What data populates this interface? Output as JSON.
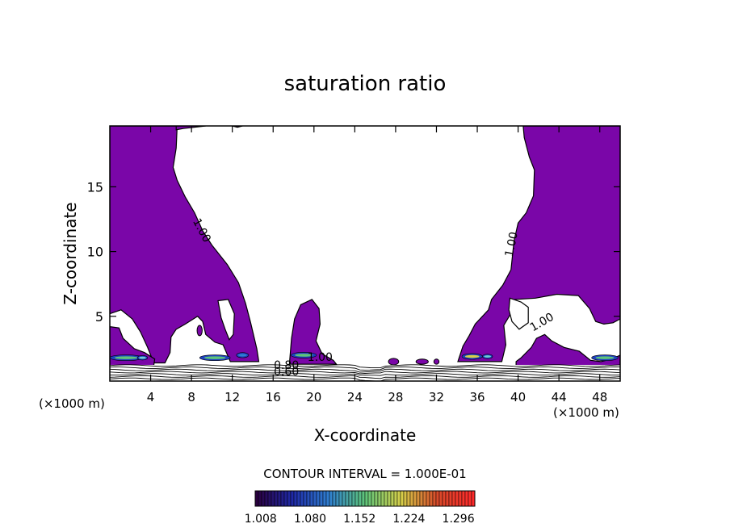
{
  "chart_data": {
    "type": "contour",
    "title": "saturation ratio",
    "xlabel": "X-coordinate",
    "ylabel": "Z-coordinate",
    "x_unit_label": "(×1000 m)",
    "z_unit_label": "(×1000 m)",
    "xlim": [
      0,
      50
    ],
    "ylim": [
      0,
      19.7
    ],
    "x_ticks": [
      "4",
      "8",
      "12",
      "16",
      "20",
      "24",
      "28",
      "32",
      "36",
      "40",
      "44",
      "48"
    ],
    "y_ticks": [
      "5",
      "10",
      "15"
    ],
    "contour_interval_label": "CONTOUR INTERVAL = 1.000E-01",
    "contour_labels": [
      "1.00",
      "1.00",
      "1.00",
      "1.00",
      "0.80",
      "0.60"
    ],
    "colorbar": {
      "ticks": [
        "1.008",
        "1.080",
        "1.152",
        "1.224",
        "1.296"
      ],
      "tick_values": [
        1.008,
        1.08,
        1.152,
        1.224,
        1.296
      ],
      "range": [
        1.0,
        1.32
      ],
      "colors": [
        "#2a0040",
        "#1f2aa8",
        "#2f7fd0",
        "#5ec47a",
        "#d6d04a",
        "#d84a2a",
        "#ff2a2a"
      ]
    },
    "fill_color": "#7a06a8",
    "grid": false,
    "regions": [
      {
        "name": "left-upper",
        "points": [
          [
            0,
            19.7
          ],
          [
            6.6,
            19.7
          ],
          [
            6.5,
            18
          ],
          [
            6.2,
            16.5
          ],
          [
            6.6,
            15.5
          ],
          [
            7.4,
            14.2
          ],
          [
            8.3,
            13
          ],
          [
            9.1,
            11.6
          ],
          [
            10,
            10.5
          ],
          [
            11.5,
            9
          ],
          [
            12.6,
            7.6
          ],
          [
            13.3,
            6
          ],
          [
            13.8,
            4.5
          ],
          [
            14.4,
            2.5
          ],
          [
            14.6,
            1.5
          ],
          [
            11.8,
            1.5
          ],
          [
            11.1,
            2.8
          ],
          [
            10.3,
            3
          ],
          [
            9.4,
            3.6
          ],
          [
            9.1,
            4.6
          ],
          [
            8.6,
            5
          ],
          [
            7.4,
            4.4
          ],
          [
            6.5,
            4
          ],
          [
            6,
            3.4
          ],
          [
            5.9,
            2.2
          ],
          [
            5.4,
            1.4
          ],
          [
            4.3,
            1.4
          ],
          [
            3.7,
            2.6
          ],
          [
            3,
            3.8
          ],
          [
            2.2,
            4.8
          ],
          [
            1.1,
            5.5
          ],
          [
            0,
            5.2
          ]
        ]
      },
      {
        "name": "left-lower",
        "points": [
          [
            0,
            4.2
          ],
          [
            0.9,
            4.1
          ],
          [
            1.3,
            3.3
          ],
          [
            2.4,
            2.5
          ],
          [
            3.4,
            2.2
          ],
          [
            4.4,
            1.7
          ],
          [
            4.3,
            1.2
          ],
          [
            0,
            1.2
          ]
        ]
      },
      {
        "name": "mid-bump",
        "points": [
          [
            17.6,
            1.4
          ],
          [
            17.8,
            3.3
          ],
          [
            18.1,
            4.8
          ],
          [
            18.7,
            5.9
          ],
          [
            19.8,
            6.3
          ],
          [
            20.5,
            5.6
          ],
          [
            20.6,
            4.4
          ],
          [
            20.2,
            3.1
          ],
          [
            20.8,
            2.1
          ],
          [
            21.9,
            1.6
          ],
          [
            22.2,
            1.3
          ],
          [
            17.6,
            1.3
          ]
        ]
      },
      {
        "name": "right-upper",
        "points": [
          [
            40.5,
            19.7
          ],
          [
            50,
            19.7
          ],
          [
            50,
            4.8
          ],
          [
            49.3,
            4.5
          ],
          [
            48.4,
            4.4
          ],
          [
            47.6,
            4.6
          ],
          [
            47,
            5.6
          ],
          [
            45.9,
            6.6
          ],
          [
            43.8,
            6.7
          ],
          [
            41.7,
            6.4
          ],
          [
            39.7,
            6.3
          ],
          [
            39.5,
            5.5
          ],
          [
            38.6,
            4.3
          ],
          [
            38.8,
            2.8
          ],
          [
            38.4,
            1.5
          ],
          [
            34.1,
            1.5
          ],
          [
            34.6,
            2.7
          ],
          [
            35.2,
            3.5
          ],
          [
            35.8,
            4.4
          ],
          [
            37.1,
            5.5
          ],
          [
            37.4,
            6.3
          ],
          [
            38.5,
            7.4
          ],
          [
            39.3,
            8.6
          ],
          [
            39.6,
            10.8
          ],
          [
            40,
            12.2
          ],
          [
            40.8,
            13
          ],
          [
            41.5,
            14.3
          ],
          [
            41.6,
            16.3
          ],
          [
            41.1,
            17.3
          ],
          [
            40.6,
            18.8
          ]
        ]
      },
      {
        "name": "right-lower",
        "points": [
          [
            39.8,
            1.5
          ],
          [
            40.3,
            1.8
          ],
          [
            41.3,
            2.6
          ],
          [
            41.8,
            3.3
          ],
          [
            42.6,
            3.6
          ],
          [
            43.3,
            3.1
          ],
          [
            44.5,
            2.6
          ],
          [
            46,
            2.3
          ],
          [
            47.1,
            1.6
          ],
          [
            48.1,
            1.5
          ],
          [
            49.2,
            1.7
          ],
          [
            50,
            2
          ],
          [
            50,
            1.2
          ],
          [
            39.8,
            1.2
          ]
        ]
      },
      {
        "name": "top-left-sliver",
        "points": [
          [
            6.5,
            19.7
          ],
          [
            9.4,
            19.7
          ],
          [
            7.2,
            19.5
          ],
          [
            6.5,
            19.4
          ]
        ]
      },
      {
        "name": "top-mid-sliver",
        "points": [
          [
            12,
            19.7
          ],
          [
            13,
            19.7
          ],
          [
            12.5,
            19.6
          ]
        ]
      }
    ],
    "islands": [
      {
        "name": "white-island-left",
        "points": [
          [
            10.6,
            6.2
          ],
          [
            11.6,
            6.3
          ],
          [
            12.2,
            5.2
          ],
          [
            12.1,
            3.6
          ],
          [
            11.7,
            3.2
          ],
          [
            11.3,
            4
          ],
          [
            10.9,
            4.9
          ]
        ]
      },
      {
        "name": "white-island-right",
        "points": [
          [
            39.2,
            6.4
          ],
          [
            40.3,
            6.1
          ],
          [
            41,
            5.7
          ],
          [
            41,
            4.5
          ],
          [
            40.1,
            4
          ],
          [
            39.4,
            4.6
          ],
          [
            39.1,
            5.5
          ]
        ]
      }
    ],
    "hotspots": [
      {
        "x": 1.6,
        "z": 1.8,
        "w": 3.2,
        "h": 0.45,
        "level": 2
      },
      {
        "x": 3.2,
        "z": 1.8,
        "w": 1.0,
        "h": 0.35,
        "level": 4
      },
      {
        "x": 10.3,
        "z": 1.8,
        "w": 3.0,
        "h": 0.45,
        "level": 2
      },
      {
        "x": 13.0,
        "z": 2.0,
        "w": 1.2,
        "h": 0.4,
        "level": 1
      },
      {
        "x": 19.0,
        "z": 2.0,
        "w": 2.5,
        "h": 0.45,
        "level": 2
      },
      {
        "x": 35.5,
        "z": 1.9,
        "w": 2.0,
        "h": 0.45,
        "level": 3
      },
      {
        "x": 37.0,
        "z": 1.9,
        "w": 1.0,
        "h": 0.35,
        "level": 4
      },
      {
        "x": 48.5,
        "z": 1.8,
        "w": 2.6,
        "h": 0.45,
        "level": 2
      }
    ],
    "small_patches": [
      {
        "x": 27.8,
        "z": 1.5,
        "w": 1.0,
        "h": 0.5
      },
      {
        "x": 30.6,
        "z": 1.5,
        "w": 1.2,
        "h": 0.4
      },
      {
        "x": 32.0,
        "z": 1.5,
        "w": 0.5,
        "h": 0.4
      },
      {
        "x": 8.8,
        "z": 3.9,
        "w": 0.5,
        "h": 0.8
      }
    ]
  }
}
